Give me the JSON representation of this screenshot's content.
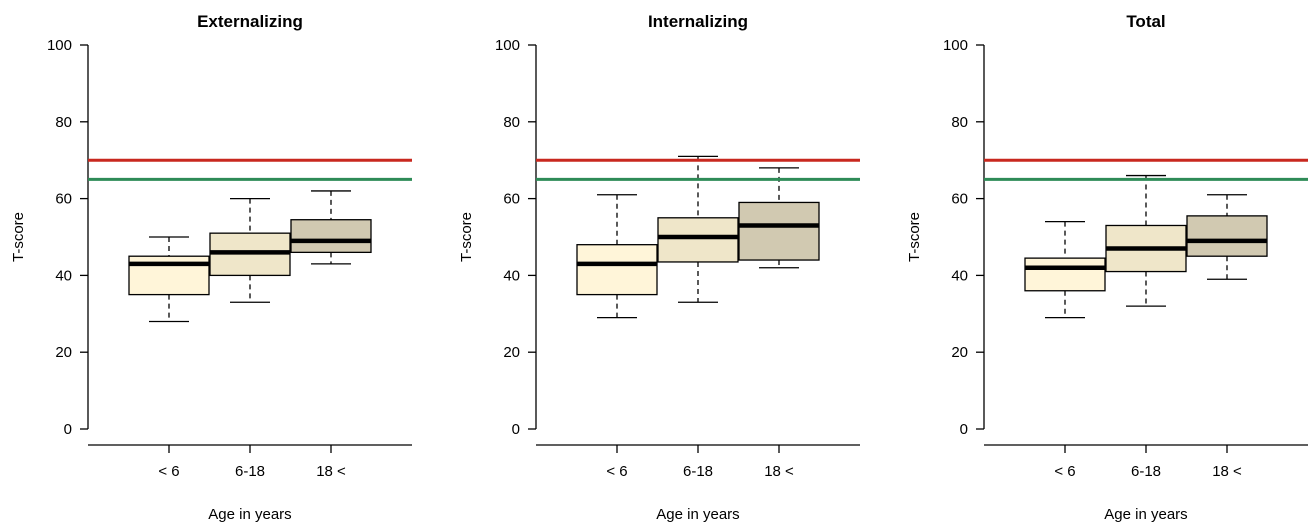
{
  "chart_data": [
    {
      "type": "box",
      "title": "Externalizing",
      "xlabel": "Age in years",
      "ylabel": "T-score",
      "ylim": [
        0,
        100
      ],
      "yticks": [
        0,
        20,
        40,
        60,
        80,
        100
      ],
      "categories": [
        "< 6",
        "6-18",
        "18 <"
      ],
      "box_colors": [
        "#fff5d9",
        "#efe6c9",
        "#d1c9b1"
      ],
      "boxes": [
        {
          "min": 28,
          "q1": 35,
          "median": 43,
          "q3": 45,
          "max": 50
        },
        {
          "min": 33,
          "q1": 40,
          "median": 46,
          "q3": 51,
          "max": 60
        },
        {
          "min": 43,
          "q1": 46,
          "median": 49,
          "q3": 54.5,
          "max": 62
        }
      ],
      "reference_lines": [
        {
          "value": 70,
          "color": "#c8281f"
        },
        {
          "value": 65,
          "color": "#2e8b57"
        }
      ]
    },
    {
      "type": "box",
      "title": "Internalizing",
      "xlabel": "Age in years",
      "ylabel": "T-score",
      "ylim": [
        0,
        100
      ],
      "yticks": [
        0,
        20,
        40,
        60,
        80,
        100
      ],
      "categories": [
        "< 6",
        "6-18",
        "18 <"
      ],
      "box_colors": [
        "#fff5d9",
        "#efe6c9",
        "#d1c9b1"
      ],
      "boxes": [
        {
          "min": 29,
          "q1": 35,
          "median": 43,
          "q3": 48,
          "max": 61
        },
        {
          "min": 33,
          "q1": 43.5,
          "median": 50,
          "q3": 55,
          "max": 71
        },
        {
          "min": 42,
          "q1": 44,
          "median": 53,
          "q3": 59,
          "max": 68
        }
      ],
      "reference_lines": [
        {
          "value": 70,
          "color": "#c8281f"
        },
        {
          "value": 65,
          "color": "#2e8b57"
        }
      ]
    },
    {
      "type": "box",
      "title": "Total",
      "xlabel": "Age in years",
      "ylabel": "T-score",
      "ylim": [
        0,
        100
      ],
      "yticks": [
        0,
        20,
        40,
        60,
        80,
        100
      ],
      "categories": [
        "< 6",
        "6-18",
        "18 <"
      ],
      "box_colors": [
        "#fff5d9",
        "#efe6c9",
        "#d1c9b1"
      ],
      "boxes": [
        {
          "min": 29,
          "q1": 36,
          "median": 42,
          "q3": 44.5,
          "max": 54
        },
        {
          "min": 32,
          "q1": 41,
          "median": 47,
          "q3": 53,
          "max": 66
        },
        {
          "min": 39,
          "q1": 45,
          "median": 49,
          "q3": 55.5,
          "max": 61
        }
      ],
      "reference_lines": [
        {
          "value": 70,
          "color": "#c8281f"
        },
        {
          "value": 65,
          "color": "#2e8b57"
        }
      ]
    }
  ]
}
